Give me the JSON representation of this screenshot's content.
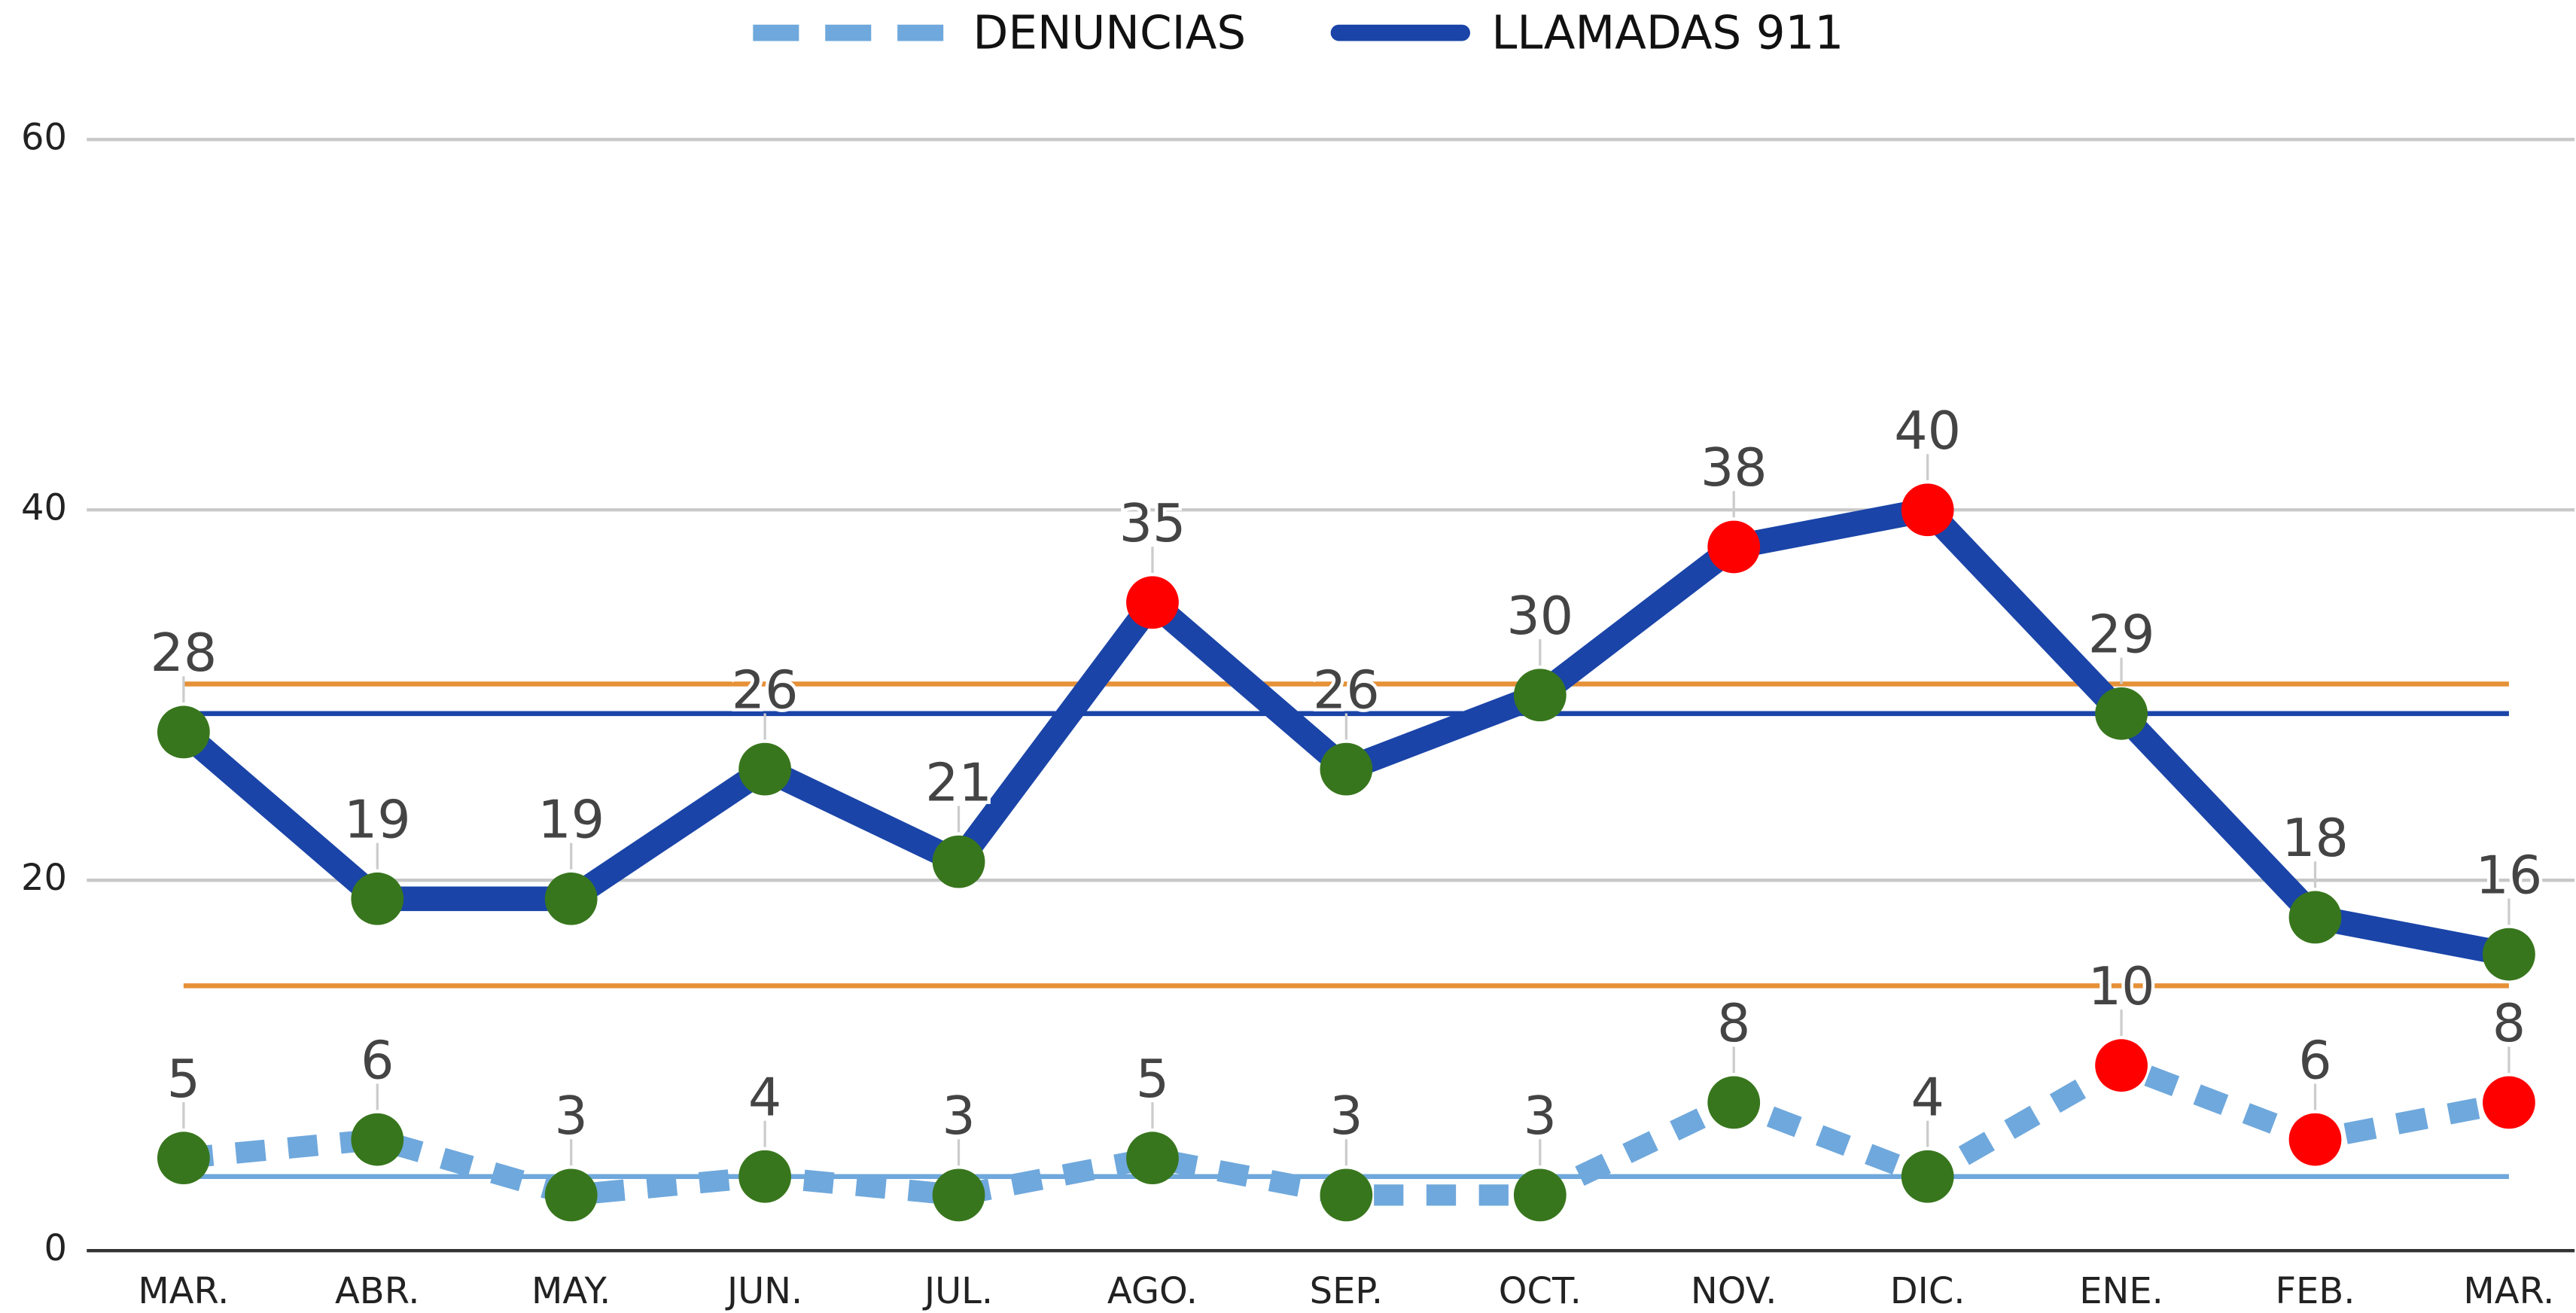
{
  "chart_data": {
    "type": "line",
    "categories": [
      "MAR.",
      "ABR.",
      "MAY.",
      "JUN.",
      "JUL.",
      "AGO.",
      "SEP.",
      "OCT.",
      "NOV.",
      "DIC.",
      "ENE.",
      "FEB.",
      "MAR."
    ],
    "series": [
      {
        "name": "DENUNCIAS",
        "color": "#6fa8dc",
        "dashed": true,
        "values": [
          5,
          6,
          3,
          4,
          3,
          5,
          3,
          3,
          8,
          4,
          10,
          6,
          8
        ],
        "marker_colors": [
          "#38761d",
          "#38761d",
          "#38761d",
          "#38761d",
          "#38761d",
          "#38761d",
          "#38761d",
          "#38761d",
          "#38761d",
          "#38761d",
          "#ff0000",
          "#ff0000",
          "#ff0000"
        ]
      },
      {
        "name": "LLAMADAS 911",
        "color": "#1a44a8",
        "dashed": false,
        "values": [
          28,
          19,
          19,
          26,
          21,
          35,
          26,
          30,
          38,
          40,
          29,
          18,
          16
        ],
        "marker_colors": [
          "#38761d",
          "#38761d",
          "#38761d",
          "#38761d",
          "#38761d",
          "#ff0000",
          "#38761d",
          "#38761d",
          "#ff0000",
          "#ff0000",
          "#38761d",
          "#38761d",
          "#38761d"
        ]
      }
    ],
    "reference_lines": [
      {
        "value": 30.6,
        "color": "#e69138"
      },
      {
        "value": 29,
        "color": "#1a44a8"
      },
      {
        "value": 14.3,
        "color": "#e69138"
      },
      {
        "value": 4,
        "color": "#6fa8dc"
      }
    ],
    "ylim": [
      0,
      60
    ],
    "yticks": [
      0,
      20,
      40,
      60
    ],
    "grid": true,
    "legend": "top"
  }
}
